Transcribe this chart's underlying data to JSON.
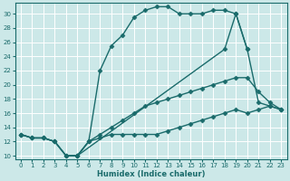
{
  "xlabel": "Humidex (Indice chaleur)",
  "bg_color": "#cce8e8",
  "grid_color": "#ffffff",
  "line_color": "#1a6b6b",
  "marker": "D",
  "markersize": 2.5,
  "linewidth": 1.0,
  "xlim": [
    -0.5,
    23.5
  ],
  "ylim": [
    9.5,
    31.5
  ],
  "xticks": [
    0,
    1,
    2,
    3,
    4,
    5,
    6,
    7,
    8,
    9,
    10,
    11,
    12,
    13,
    14,
    15,
    16,
    17,
    18,
    19,
    20,
    21,
    22,
    23
  ],
  "yticks": [
    10,
    12,
    14,
    16,
    18,
    20,
    22,
    24,
    26,
    28,
    30
  ],
  "line1_x": [
    0,
    1,
    2,
    3,
    4,
    5,
    6,
    7,
    8,
    9,
    10,
    11,
    12,
    13,
    14,
    15,
    16,
    17,
    18,
    19,
    20,
    21,
    22,
    23
  ],
  "line1_y": [
    13,
    12.5,
    12.5,
    12,
    10,
    10,
    12,
    12.5,
    13,
    13,
    13,
    13,
    13,
    13.5,
    14,
    14.5,
    15,
    15.5,
    16,
    16.5,
    16,
    16.5,
    17,
    16.5
  ],
  "line2_x": [
    0,
    1,
    2,
    3,
    4,
    5,
    6,
    7,
    8,
    9,
    10,
    11,
    12,
    13,
    14,
    15,
    16,
    17,
    18,
    19,
    20,
    21,
    22,
    23
  ],
  "line2_y": [
    13,
    12.5,
    12.5,
    12,
    10,
    10,
    12,
    13,
    14,
    15,
    16,
    17,
    17.5,
    18,
    18.5,
    19,
    19.5,
    20,
    20.5,
    21,
    21,
    19,
    17.5,
    16.5
  ],
  "line3_x": [
    0,
    1,
    2,
    3,
    4,
    5,
    6,
    7,
    8,
    9,
    10,
    11,
    12,
    13,
    14,
    15,
    16,
    17,
    18,
    19,
    20
  ],
  "line3_y": [
    13,
    12.5,
    12.5,
    12,
    10,
    10,
    12,
    22,
    25.5,
    27,
    29.5,
    30.5,
    31,
    31,
    30,
    30,
    30,
    30.5,
    30.5,
    30,
    25
  ],
  "line4_x": [
    5,
    18,
    19,
    20,
    21,
    22,
    23
  ],
  "line4_y": [
    10,
    25,
    30,
    25,
    17.5,
    17,
    16.5
  ]
}
